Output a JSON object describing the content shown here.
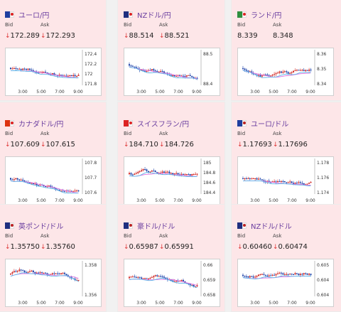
{
  "bid_label": "Bid",
  "ask_label": "Ask",
  "arrow_glyph": "↓",
  "x_ticks": [
    "3:00",
    "5:00",
    "7:00",
    "9:00"
  ],
  "cards": [
    {
      "name": "ユーロ/円",
      "flag": "eu-jp-flag",
      "bid": "172.289",
      "ask": "172.293",
      "down": true,
      "y_ticks": [
        "172.4",
        "172.2",
        "172",
        "171.8"
      ],
      "seed": 11
    },
    {
      "name": "NZドル/円",
      "flag": "nz-jp-flag",
      "bid": "88.514",
      "ask": "88.521",
      "down": true,
      "y_ticks": [
        "88.5",
        "88.4"
      ],
      "seed": 23
    },
    {
      "name": "ランド/円",
      "flag": "za-jp-flag",
      "bid": "8.339",
      "ask": "8.348",
      "down": false,
      "y_ticks": [
        "8.36",
        "8.35",
        "8.34"
      ],
      "seed": 37
    },
    {
      "name": "カナダドル/円",
      "flag": "ca-jp-flag",
      "bid": "107.609",
      "ask": "107.615",
      "down": true,
      "y_ticks": [
        "107.8",
        "107.7",
        "107.6"
      ],
      "seed": 41
    },
    {
      "name": "スイスフラン/円",
      "flag": "ch-jp-flag",
      "bid": "184.710",
      "ask": "184.726",
      "down": true,
      "y_ticks": [
        "185",
        "184.8",
        "184.6",
        "184.4"
      ],
      "seed": 53
    },
    {
      "name": "ユーロ/ドル",
      "flag": "eu-us-flag",
      "bid": "1.17693",
      "ask": "1.17696",
      "down": true,
      "y_ticks": [
        "1.178",
        "1.176",
        "1.174"
      ],
      "seed": 67
    },
    {
      "name": "英ポンド/ドル",
      "flag": "gb-us-flag",
      "bid": "1.35750",
      "ask": "1.35760",
      "down": true,
      "y_ticks": [
        "1.358",
        "1.356"
      ],
      "seed": 71
    },
    {
      "name": "豪ドル/ドル",
      "flag": "au-us-flag",
      "bid": "0.65987",
      "ask": "0.65991",
      "down": true,
      "y_ticks": [
        "0.66",
        "0.659",
        "0.658"
      ],
      "seed": 83
    },
    {
      "name": "NZドル/ドル",
      "flag": "nz-us-flag",
      "bid": "0.60460",
      "ask": "0.60474",
      "down": true,
      "y_ticks": [
        "0.605",
        "0.604",
        "0.604"
      ],
      "seed": 97
    }
  ],
  "colors": {
    "up_candle": "#d0211c",
    "down_candle": "#1a3fa8",
    "ma_line": "#e070e0",
    "ma_line2": "#5bb5e8",
    "pair_text": "#6b3fa0",
    "card_bg": "#fde6e8"
  }
}
